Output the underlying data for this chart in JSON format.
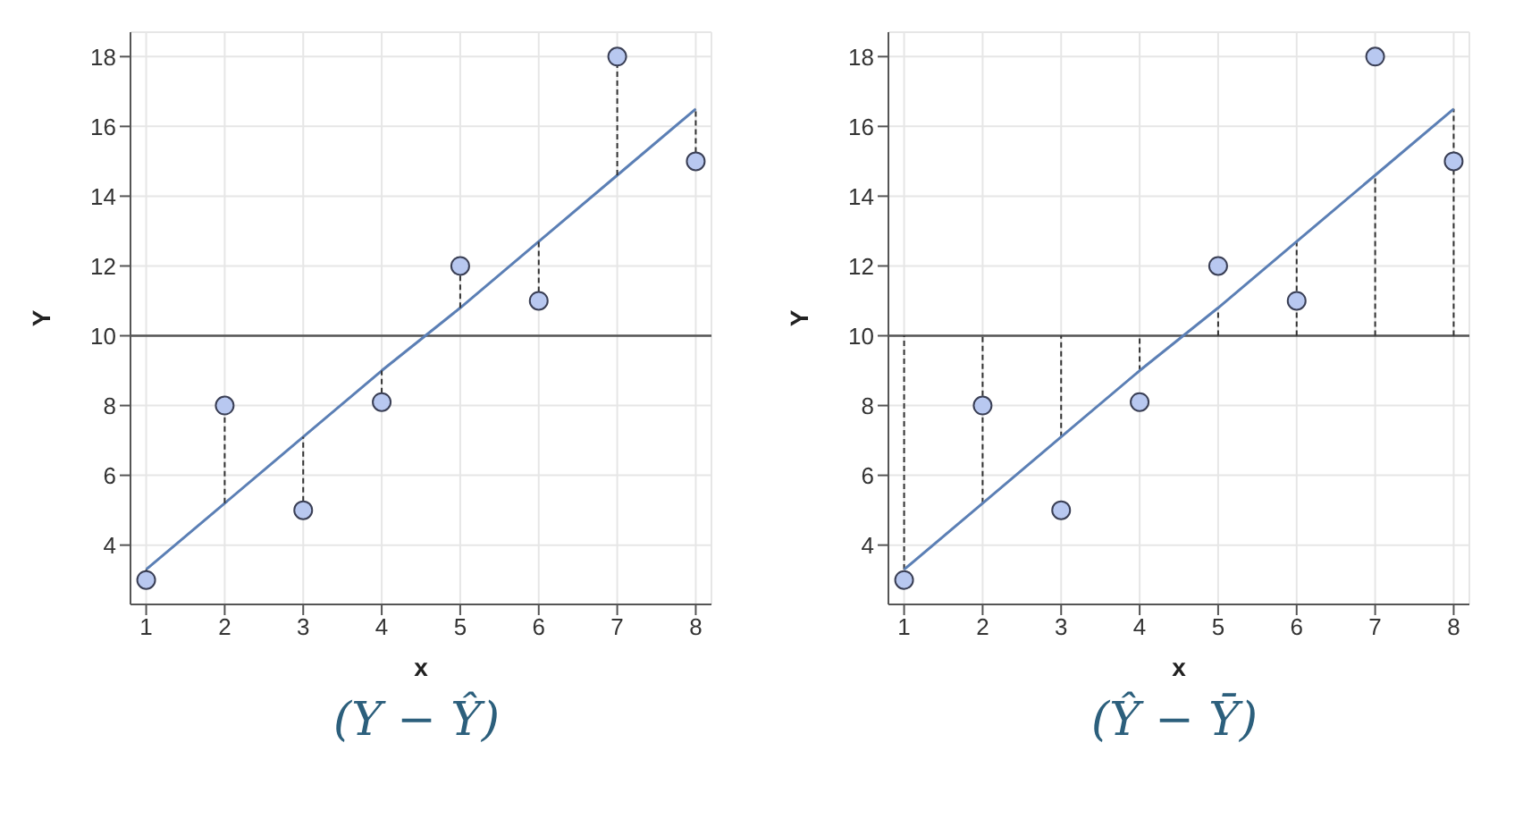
{
  "chart_data": [
    {
      "type": "scatter",
      "xlabel": "x",
      "ylabel": "Y",
      "x": [
        1,
        2,
        3,
        4,
        5,
        6,
        7,
        8
      ],
      "xlim": [
        0.8,
        8.2
      ],
      "xticks": [
        1,
        2,
        3,
        4,
        5,
        6,
        7,
        8
      ],
      "ylim": [
        2.3,
        18.7
      ],
      "yticks": [
        4,
        6,
        8,
        10,
        12,
        14,
        16,
        18
      ],
      "grid": true,
      "marker": "circle",
      "series": [
        {
          "color": "#b8c8f0",
          "values": [
            3,
            8,
            5,
            8.1,
            12,
            11,
            18,
            15
          ],
          "errors": [
            [
              3,
              3.3
            ],
            [
              5.2,
              8
            ],
            [
              5,
              7.1
            ],
            [
              8.1,
              9.0
            ],
            [
              10.8,
              12
            ],
            [
              11,
              12.7
            ],
            [
              14.6,
              18
            ],
            [
              15,
              16.5
            ]
          ]
        },
        {
          "type": "line",
          "marker": "none",
          "color": "#5b7fb5",
          "values": [
            3.3,
            5.2,
            7.1,
            9.0,
            10.8,
            12.7,
            14.6,
            16.5
          ]
        }
      ],
      "ref_lines": [
        {
          "axis": "y",
          "value": 10,
          "color": "#555555"
        }
      ],
      "annotations": [
        "(Y − Ŷ)"
      ]
    },
    {
      "type": "scatter",
      "xlabel": "x",
      "ylabel": "Y",
      "x": [
        1,
        2,
        3,
        4,
        5,
        6,
        7,
        8
      ],
      "xlim": [
        0.8,
        8.2
      ],
      "xticks": [
        1,
        2,
        3,
        4,
        5,
        6,
        7,
        8
      ],
      "ylim": [
        2.3,
        18.7
      ],
      "yticks": [
        4,
        6,
        8,
        10,
        12,
        14,
        16,
        18
      ],
      "grid": true,
      "marker": "circle",
      "series": [
        {
          "color": "#b8c8f0",
          "values": [
            3,
            8,
            5,
            8.1,
            12,
            11,
            18,
            15
          ]
        },
        {
          "type": "line",
          "marker": "none",
          "color": "#5b7fb5",
          "values": [
            3.3,
            5.2,
            7.1,
            9.0,
            10.8,
            12.7,
            14.6,
            16.5
          ],
          "errors": [
            [
              3.3,
              10
            ],
            [
              5.2,
              10
            ],
            [
              7.1,
              10
            ],
            [
              9.0,
              10
            ],
            [
              10,
              10.8
            ],
            [
              10,
              12.7
            ],
            [
              10,
              14.6
            ],
            [
              10,
              16.5
            ]
          ]
        }
      ],
      "ref_lines": [
        {
          "axis": "y",
          "value": 10,
          "color": "#555555"
        }
      ],
      "annotations": [
        "(Ŷ − Ȳ)"
      ]
    }
  ]
}
